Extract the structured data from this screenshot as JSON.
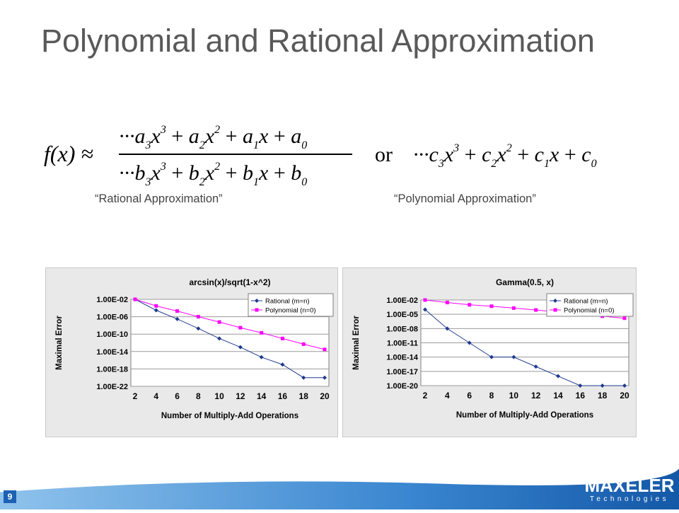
{
  "slide": {
    "title": "Polynomial and Rational Approximation",
    "page_number": "9",
    "captions": {
      "rational": "“Rational Approximation”",
      "polynomial": "“Polynomial Approximation”"
    },
    "formula": {
      "lhs": "f(x) ≈",
      "or": "or"
    },
    "logo": {
      "word": "MAXELER",
      "sub": "Technologies"
    }
  },
  "colors": {
    "title": "#595959",
    "rational_series": "#1f3b8f",
    "polynomial_series": "#ff00ff",
    "footer_blue": "#1c62b4"
  },
  "chart_data": [
    {
      "type": "line",
      "title": "arcsin(x)/sqrt(1-x^2)",
      "xlabel": "Number of Multiply-Add Operations",
      "ylabel": "Maximal Error",
      "y_scale": "log",
      "x": [
        2,
        4,
        6,
        8,
        10,
        12,
        14,
        16,
        18,
        20
      ],
      "y_ticks": [
        "1.00E-02",
        "1.00E-06",
        "1.00E-10",
        "1.00E-14",
        "1.00E-18",
        "1.00E-22"
      ],
      "ylim": [
        "1.00E-22",
        "1.00E-02"
      ],
      "grid": true,
      "legend_position": "top-right",
      "series": [
        {
          "name": "Rational (m=n)",
          "marker": "diamond",
          "values": [
            "1.00E-02",
            "3.00E-05",
            "3.00E-07",
            "2.00E-09",
            "1.00E-11",
            "1.00E-13",
            "5.00E-16",
            "1.00E-17",
            "1.00E-20",
            "1.00E-20"
          ]
        },
        {
          "name": "Polynomial (n=0)",
          "marker": "square",
          "values": [
            "1.00E-02",
            "3.00E-04",
            "2.00E-05",
            "1.00E-06",
            "6.00E-08",
            "3.00E-09",
            "2.00E-10",
            "1.00E-11",
            "5.00E-13",
            "3.00E-14"
          ]
        }
      ]
    },
    {
      "type": "line",
      "title": "Gamma(0.5, x)",
      "xlabel": "Number of Multiply-Add Operations",
      "ylabel": "Maximal Error",
      "y_scale": "log",
      "x": [
        2,
        4,
        6,
        8,
        10,
        12,
        14,
        16,
        18,
        20
      ],
      "y_ticks": [
        "1.00E-02",
        "1.00E-05",
        "1.00E-08",
        "1.00E-11",
        "1.00E-14",
        "1.00E-17",
        "1.00E-20"
      ],
      "ylim": [
        "1.00E-20",
        "1.00E-02"
      ],
      "grid": true,
      "legend_position": "top-right",
      "series": [
        {
          "name": "Rational (m=n)",
          "marker": "diamond",
          "values": [
            "1.00E-04",
            "1.00E-08",
            "1.00E-11",
            "1.00E-14",
            "1.00E-14",
            "1.00E-16",
            "1.00E-18",
            "1.00E-20",
            "1.00E-20",
            "1.00E-20"
          ]
        },
        {
          "name": "Polynomial (n=0)",
          "marker": "square",
          "values": [
            "1.00E-02",
            "3.00E-03",
            "1.00E-03",
            "5.00E-04",
            "2.00E-04",
            "8.00E-05",
            "3.00E-05",
            "1.00E-05",
            "4.00E-06",
            "1.50E-06"
          ]
        }
      ]
    }
  ]
}
